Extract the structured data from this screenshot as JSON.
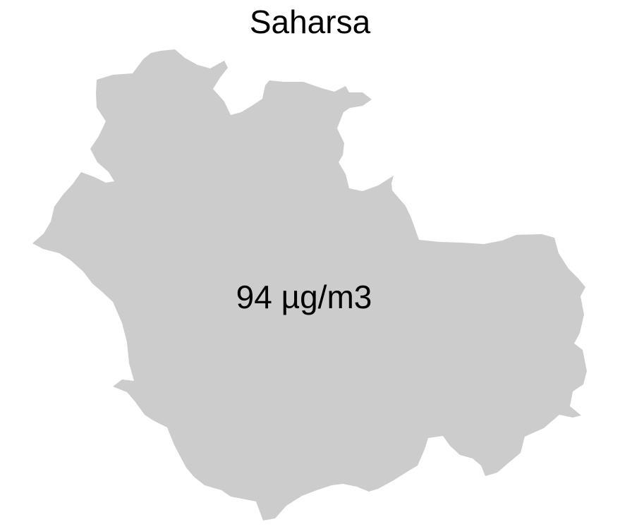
{
  "map": {
    "title": "Saharsa",
    "region_fill": "#cccccc",
    "value_label": "94 µg/m3"
  }
}
